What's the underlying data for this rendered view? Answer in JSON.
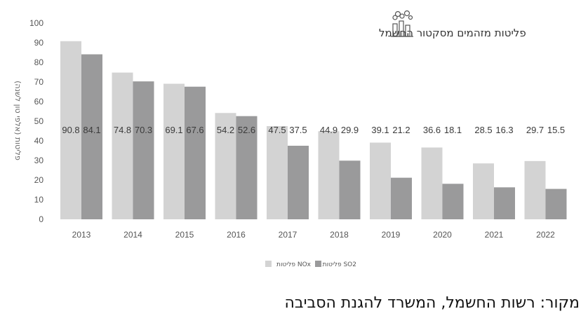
{
  "colors": {
    "nox": "#d3d3d3",
    "so2": "#9a9a9b",
    "axis_text": "#555555",
    "bar_label": "#3a3a3a"
  },
  "icon": "factory-icon",
  "source_text": "מקור: רשות החשמל, המשרד להגנת הסביבה",
  "chart_data": {
    "type": "bar",
    "title": "פליטות מזהמים מסקטור החשמל",
    "ylabel": "פליטות (אלפי טון לשנה)",
    "xlabel": "",
    "ylim": [
      0,
      100
    ],
    "yticks": [
      0,
      10,
      20,
      30,
      40,
      50,
      60,
      70,
      80,
      90,
      100
    ],
    "categories": [
      "2013",
      "2014",
      "2015",
      "2016",
      "2017",
      "2018",
      "2019",
      "2020",
      "2021",
      "2022"
    ],
    "series": [
      {
        "name": "פליטות NOx",
        "color": "#d3d3d3",
        "values": [
          90.8,
          74.8,
          69.1,
          54.2,
          47.5,
          44.9,
          39.1,
          36.6,
          28.5,
          29.7
        ]
      },
      {
        "name": "פליטות SO2",
        "color": "#9a9a9b",
        "values": [
          84.1,
          70.3,
          67.6,
          52.6,
          37.5,
          29.9,
          21.2,
          18.1,
          16.3,
          15.5
        ]
      }
    ],
    "legend_position": "bottom",
    "grid": false
  }
}
